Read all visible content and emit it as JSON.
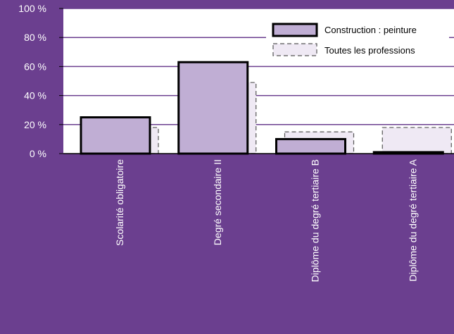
{
  "chart_data": {
    "type": "bar",
    "categories": [
      "Scolarité obligatoire",
      "Degré secondaire II",
      "Diplôme du degré tertiaire B",
      "Diplôme du degré tertiaire A"
    ],
    "series": [
      {
        "name": "Construction : peinture",
        "values": [
          25,
          63,
          10,
          1
        ]
      },
      {
        "name": "Toutes les professions",
        "values": [
          18,
          49,
          15,
          18
        ]
      }
    ],
    "yticks": [
      "0 %",
      "20 %",
      "40 %",
      "60 %",
      "80 %",
      "100 %"
    ],
    "ylim": [
      0,
      100
    ],
    "grid": true,
    "legend_position": "top-right",
    "colors": {
      "background": "#6b3f8f",
      "plot_area": "#ffffff",
      "gridline": "#6b3f8f",
      "series_1_fill": "#c0aed4",
      "series_1_stroke": "#000000",
      "series_2_fill": "#efe9f4",
      "series_2_stroke": "#555555"
    }
  }
}
